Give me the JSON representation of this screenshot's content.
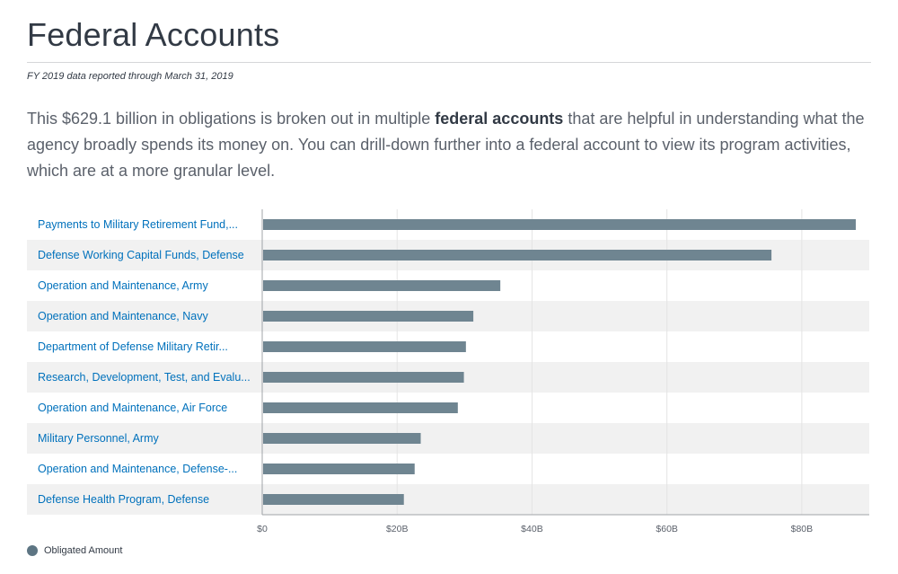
{
  "header": {
    "title": "Federal Accounts",
    "date_note": "FY 2019 data reported through March 31, 2019"
  },
  "intro": {
    "before": "This $629.1 billion in obligations is broken out in multiple ",
    "bold": "federal accounts",
    "after": " that are helpful in understanding what the agency broadly spends its money on. You can drill-down further into a federal account to view its program activities, which are at a more granular level."
  },
  "colors": {
    "bar": "#6f8591",
    "row_stripe": "#f1f1f1",
    "link": "#0071bc",
    "legend_dot": "#5d7583"
  },
  "legend": {
    "label": "Obligated Amount"
  },
  "chart_data": {
    "type": "bar",
    "orientation": "horizontal",
    "categories": [
      "Payments to Military Retirement Fund,...",
      "Defense Working Capital Funds, Defense",
      "Operation and Maintenance, Army",
      "Operation and Maintenance, Navy",
      "Department of Defense Military Retir...",
      "Research, Development, Test, and Evalu...",
      "Operation and Maintenance, Air Force",
      "Military Personnel, Army",
      "Operation and Maintenance, Defense-...",
      "Defense Health Program, Defense"
    ],
    "series": [
      {
        "name": "Obligated Amount",
        "values": [
          88.0,
          75.5,
          35.3,
          31.3,
          30.2,
          29.9,
          29.0,
          23.5,
          22.6,
          21.0
        ]
      }
    ],
    "unit": "B",
    "xlim": [
      0,
      90
    ],
    "x_ticks": [
      0,
      20,
      40,
      60,
      80
    ],
    "x_tick_labels": [
      "$0",
      "$20B",
      "$40B",
      "$60B",
      "$80B"
    ],
    "grid": true,
    "legend_position": "bottom-left"
  }
}
